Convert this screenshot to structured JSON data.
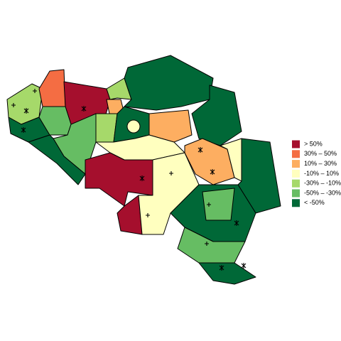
{
  "legend": {
    "items": [
      {
        "label": ">  50%",
        "color": "#a50f2d"
      },
      {
        "label": "30%  –  50%",
        "color": "#f46d43"
      },
      {
        "label": "10%  –  30%",
        "color": "#fdae61"
      },
      {
        "label": "-10%  –  10%",
        "color": "#ffffbf"
      },
      {
        "label": "-30%  –  -10%",
        "color": "#a6d96a"
      },
      {
        "label": "-50%  –  -30%",
        "color": "#66bd63"
      },
      {
        "label": "< -50%",
        "color": "#006837"
      }
    ]
  }
}
